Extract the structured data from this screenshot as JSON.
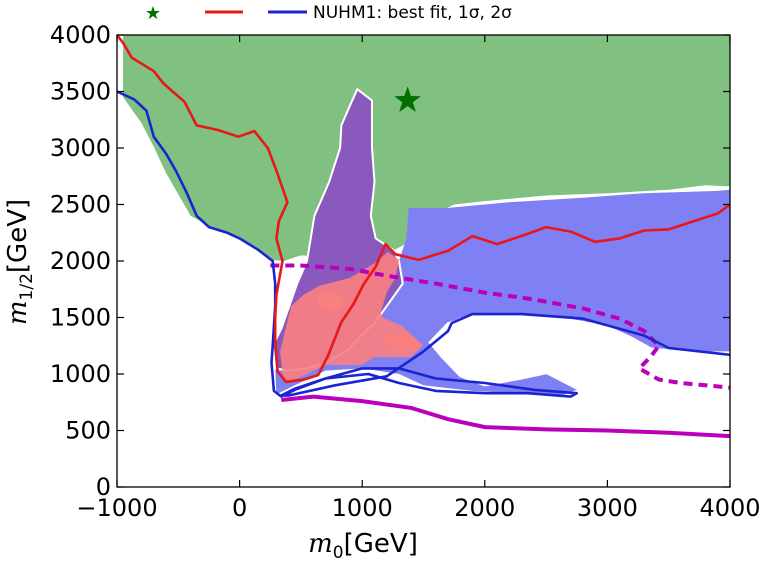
{
  "chart_data": {
    "type": "scatter",
    "title": "",
    "xlabel": {
      "symbol": "m",
      "subscript": "0",
      "unit": "[GeV]"
    },
    "ylabel": {
      "symbol": "m",
      "subscript": "1/2",
      "unit": "[GeV]"
    },
    "xlim": [
      -1000,
      4000
    ],
    "ylim": [
      0,
      4000
    ],
    "xticks": [
      -1000,
      0,
      1000,
      2000,
      3000,
      4000
    ],
    "xtick_labels": [
      "−1000",
      "0",
      "1000",
      "2000",
      "3000",
      "4000"
    ],
    "yticks": [
      0,
      500,
      1000,
      1500,
      2000,
      2500,
      3000,
      3500,
      4000
    ],
    "ytick_labels": [
      "0",
      "500",
      "1000",
      "1500",
      "2000",
      "2500",
      "3000",
      "3500",
      "4000"
    ],
    "grid": false,
    "legend": {
      "placement": "top",
      "text": "NUHM1: best fit, 1σ, 2σ",
      "markers": [
        "star",
        "red-line",
        "blue-line"
      ]
    },
    "colors": {
      "green_region": "#80c080",
      "purple_region": "#8a59bd",
      "blue_region": "#8080f5",
      "pink_region": "#fa8080",
      "red_contour": "#e81818",
      "blue_contour": "#1a24d0",
      "magenta_lines": "#bb00bb",
      "best_fit_star": "#007000"
    },
    "best_fit": {
      "x": 1370,
      "y": 3420
    },
    "regions": {
      "green": [
        [
          -950,
          4000
        ],
        [
          4000,
          4000
        ],
        [
          4000,
          2660
        ],
        [
          3800,
          2670
        ],
        [
          3500,
          2630
        ],
        [
          3000,
          2600
        ],
        [
          2500,
          2580
        ],
        [
          2000,
          2530
        ],
        [
          1750,
          2500
        ],
        [
          1500,
          2370
        ],
        [
          1350,
          2150
        ],
        [
          1100,
          2000
        ],
        [
          800,
          2030
        ],
        [
          500,
          2050
        ],
        [
          360,
          2000
        ],
        [
          250,
          2010
        ],
        [
          150,
          2100
        ],
        [
          0,
          2200
        ],
        [
          -200,
          2280
        ],
        [
          -400,
          2400
        ],
        [
          -600,
          2780
        ],
        [
          -700,
          3010
        ],
        [
          -800,
          3220
        ],
        [
          -950,
          3450
        ]
      ],
      "purple": [
        [
          960,
          3520
        ],
        [
          1080,
          3420
        ],
        [
          1080,
          3000
        ],
        [
          1100,
          2700
        ],
        [
          1070,
          2400
        ],
        [
          1110,
          2200
        ],
        [
          1250,
          2100
        ],
        [
          1300,
          2000
        ],
        [
          1330,
          1800
        ],
        [
          1200,
          1600
        ],
        [
          1100,
          1450
        ],
        [
          1000,
          1350
        ],
        [
          870,
          1200
        ],
        [
          700,
          1100
        ],
        [
          550,
          1050
        ],
        [
          400,
          1030
        ],
        [
          290,
          1050
        ],
        [
          270,
          1250
        ],
        [
          340,
          1400
        ],
        [
          470,
          1800
        ],
        [
          550,
          2000
        ],
        [
          610,
          2400
        ],
        [
          730,
          2700
        ],
        [
          820,
          3000
        ],
        [
          830,
          3200
        ],
        [
          890,
          3350
        ]
      ],
      "blue": [
        [
          1380,
          2470
        ],
        [
          1700,
          2470
        ],
        [
          2200,
          2520
        ],
        [
          2800,
          2560
        ],
        [
          3300,
          2600
        ],
        [
          3900,
          2620
        ],
        [
          4000,
          2630
        ],
        [
          4000,
          1200
        ],
        [
          3700,
          1200
        ],
        [
          3200,
          1250
        ],
        [
          2900,
          1350
        ],
        [
          2600,
          1450
        ],
        [
          2300,
          1520
        ],
        [
          2000,
          1520
        ],
        [
          1800,
          1500
        ],
        [
          1700,
          1450
        ],
        [
          1750,
          1350
        ],
        [
          2100,
          1150
        ],
        [
          2500,
          1000
        ],
        [
          2750,
          860
        ],
        [
          2600,
          800
        ],
        [
          2300,
          830
        ],
        [
          1900,
          850
        ],
        [
          1500,
          900
        ],
        [
          1300,
          1000
        ],
        [
          1000,
          1050
        ],
        [
          700,
          1030
        ],
        [
          450,
          900
        ],
        [
          300,
          820
        ],
        [
          290,
          1050
        ],
        [
          1000,
          1350
        ],
        [
          1330,
          1800
        ],
        [
          1300,
          2000
        ],
        [
          1360,
          2200
        ]
      ],
      "white_holes": [
        [
          [
            1700,
            1450
          ],
          [
            1900,
            1510
          ],
          [
            2300,
            1520
          ],
          [
            2700,
            1480
          ],
          [
            3000,
            1420
          ],
          [
            3200,
            1320
          ],
          [
            3400,
            1200
          ],
          [
            3150,
            1130
          ],
          [
            2900,
            1100
          ],
          [
            2600,
            1030
          ],
          [
            2300,
            960
          ],
          [
            2000,
            900
          ],
          [
            1800,
            980
          ],
          [
            1650,
            1150
          ],
          [
            1550,
            1280
          ]
        ]
      ],
      "pink": [
        [
          1210,
          2080
        ],
        [
          1300,
          2010
        ],
        [
          1270,
          1850
        ],
        [
          1200,
          1720
        ],
        [
          1150,
          1540
        ],
        [
          1170,
          1500
        ],
        [
          1330,
          1420
        ],
        [
          1450,
          1300
        ],
        [
          1490,
          1250
        ],
        [
          1400,
          1150
        ],
        [
          1250,
          1150
        ],
        [
          1100,
          1150
        ],
        [
          990,
          1080
        ],
        [
          700,
          1080
        ],
        [
          450,
          950
        ],
        [
          360,
          930
        ],
        [
          330,
          1200
        ],
        [
          420,
          1600
        ],
        [
          520,
          1700
        ],
        [
          650,
          1780
        ],
        [
          900,
          1850
        ],
        [
          1100,
          1980
        ]
      ],
      "pink_extra": [
        [
          [
            630,
            1700
          ],
          [
            760,
            1750
          ],
          [
            860,
            1640
          ],
          [
            800,
            1560
          ],
          [
            650,
            1580
          ]
        ],
        [
          [
            1200,
            1370
          ],
          [
            1420,
            1330
          ],
          [
            1500,
            1250
          ],
          [
            1330,
            1200
          ],
          [
            1180,
            1250
          ]
        ]
      ]
    },
    "contours": {
      "red": [
        [
          -1000,
          4000
        ],
        [
          -950,
          3930
        ],
        [
          -880,
          3800
        ],
        [
          -700,
          3680
        ],
        [
          -620,
          3570
        ],
        [
          -450,
          3410
        ],
        [
          -350,
          3200
        ],
        [
          -180,
          3160
        ],
        [
          -10,
          3100
        ],
        [
          120,
          3150
        ],
        [
          230,
          3000
        ],
        [
          300,
          2800
        ],
        [
          390,
          2520
        ],
        [
          320,
          2350
        ],
        [
          300,
          2200
        ],
        [
          350,
          2000
        ],
        [
          300,
          1700
        ],
        [
          290,
          1500
        ],
        [
          290,
          1300
        ],
        [
          310,
          1020
        ],
        [
          380,
          930
        ],
        [
          520,
          950
        ],
        [
          640,
          990
        ],
        [
          720,
          1160
        ],
        [
          830,
          1460
        ],
        [
          930,
          1620
        ],
        [
          1010,
          1790
        ],
        [
          1110,
          1950
        ],
        [
          1190,
          2150
        ],
        [
          1270,
          2060
        ],
        [
          1460,
          2010
        ],
        [
          1700,
          2090
        ],
        [
          1900,
          2220
        ],
        [
          2100,
          2150
        ],
        [
          2350,
          2240
        ],
        [
          2500,
          2300
        ],
        [
          2700,
          2260
        ],
        [
          2900,
          2170
        ],
        [
          3100,
          2200
        ],
        [
          3300,
          2270
        ],
        [
          3500,
          2280
        ],
        [
          3700,
          2350
        ],
        [
          3900,
          2420
        ],
        [
          4000,
          2500
        ]
      ],
      "blue": [
        [
          -1000,
          3500
        ],
        [
          -860,
          3430
        ],
        [
          -760,
          3330
        ],
        [
          -700,
          3100
        ],
        [
          -600,
          2950
        ],
        [
          -520,
          2800
        ],
        [
          -430,
          2600
        ],
        [
          -350,
          2400
        ],
        [
          -250,
          2300
        ],
        [
          -100,
          2250
        ],
        [
          0,
          2200
        ],
        [
          150,
          2100
        ],
        [
          270,
          2000
        ],
        [
          290,
          1800
        ],
        [
          290,
          1600
        ],
        [
          270,
          1250
        ],
        [
          260,
          1100
        ],
        [
          280,
          850
        ],
        [
          340,
          800
        ],
        [
          450,
          860
        ],
        [
          700,
          960
        ],
        [
          1000,
          1050
        ],
        [
          1300,
          1050
        ],
        [
          1600,
          960
        ],
        [
          2000,
          920
        ],
        [
          2400,
          860
        ],
        [
          2750,
          830
        ],
        [
          2700,
          800
        ],
        [
          2350,
          830
        ],
        [
          2000,
          830
        ],
        [
          1600,
          850
        ],
        [
          1300,
          920
        ],
        [
          1050,
          1000
        ],
        [
          700,
          960
        ],
        [
          450,
          870
        ],
        [
          340,
          810
        ],
        [
          400,
          810
        ],
        [
          780,
          900
        ],
        [
          1200,
          980
        ],
        [
          1500,
          1200
        ],
        [
          1700,
          1380
        ],
        [
          1730,
          1450
        ],
        [
          1900,
          1530
        ],
        [
          2300,
          1530
        ],
        [
          2800,
          1490
        ],
        [
          3300,
          1340
        ],
        [
          3500,
          1230
        ],
        [
          4000,
          1170
        ]
      ],
      "magenta_dashed": [
        [
          250,
          1960
        ],
        [
          500,
          1960
        ],
        [
          900,
          1930
        ],
        [
          1200,
          1870
        ],
        [
          1600,
          1800
        ],
        [
          2000,
          1720
        ],
        [
          2400,
          1660
        ],
        [
          2800,
          1580
        ],
        [
          3100,
          1490
        ],
        [
          3300,
          1380
        ],
        [
          3420,
          1250
        ],
        [
          3350,
          1150
        ],
        [
          3260,
          1050
        ],
        [
          3420,
          950
        ],
        [
          3600,
          920
        ],
        [
          3800,
          900
        ],
        [
          4000,
          880
        ]
      ],
      "magenta_solid": [
        [
          340,
          770
        ],
        [
          600,
          800
        ],
        [
          1000,
          760
        ],
        [
          1400,
          700
        ],
        [
          1700,
          600
        ],
        [
          2000,
          530
        ],
        [
          2500,
          510
        ],
        [
          3000,
          500
        ],
        [
          3500,
          480
        ],
        [
          4000,
          450
        ]
      ]
    }
  }
}
